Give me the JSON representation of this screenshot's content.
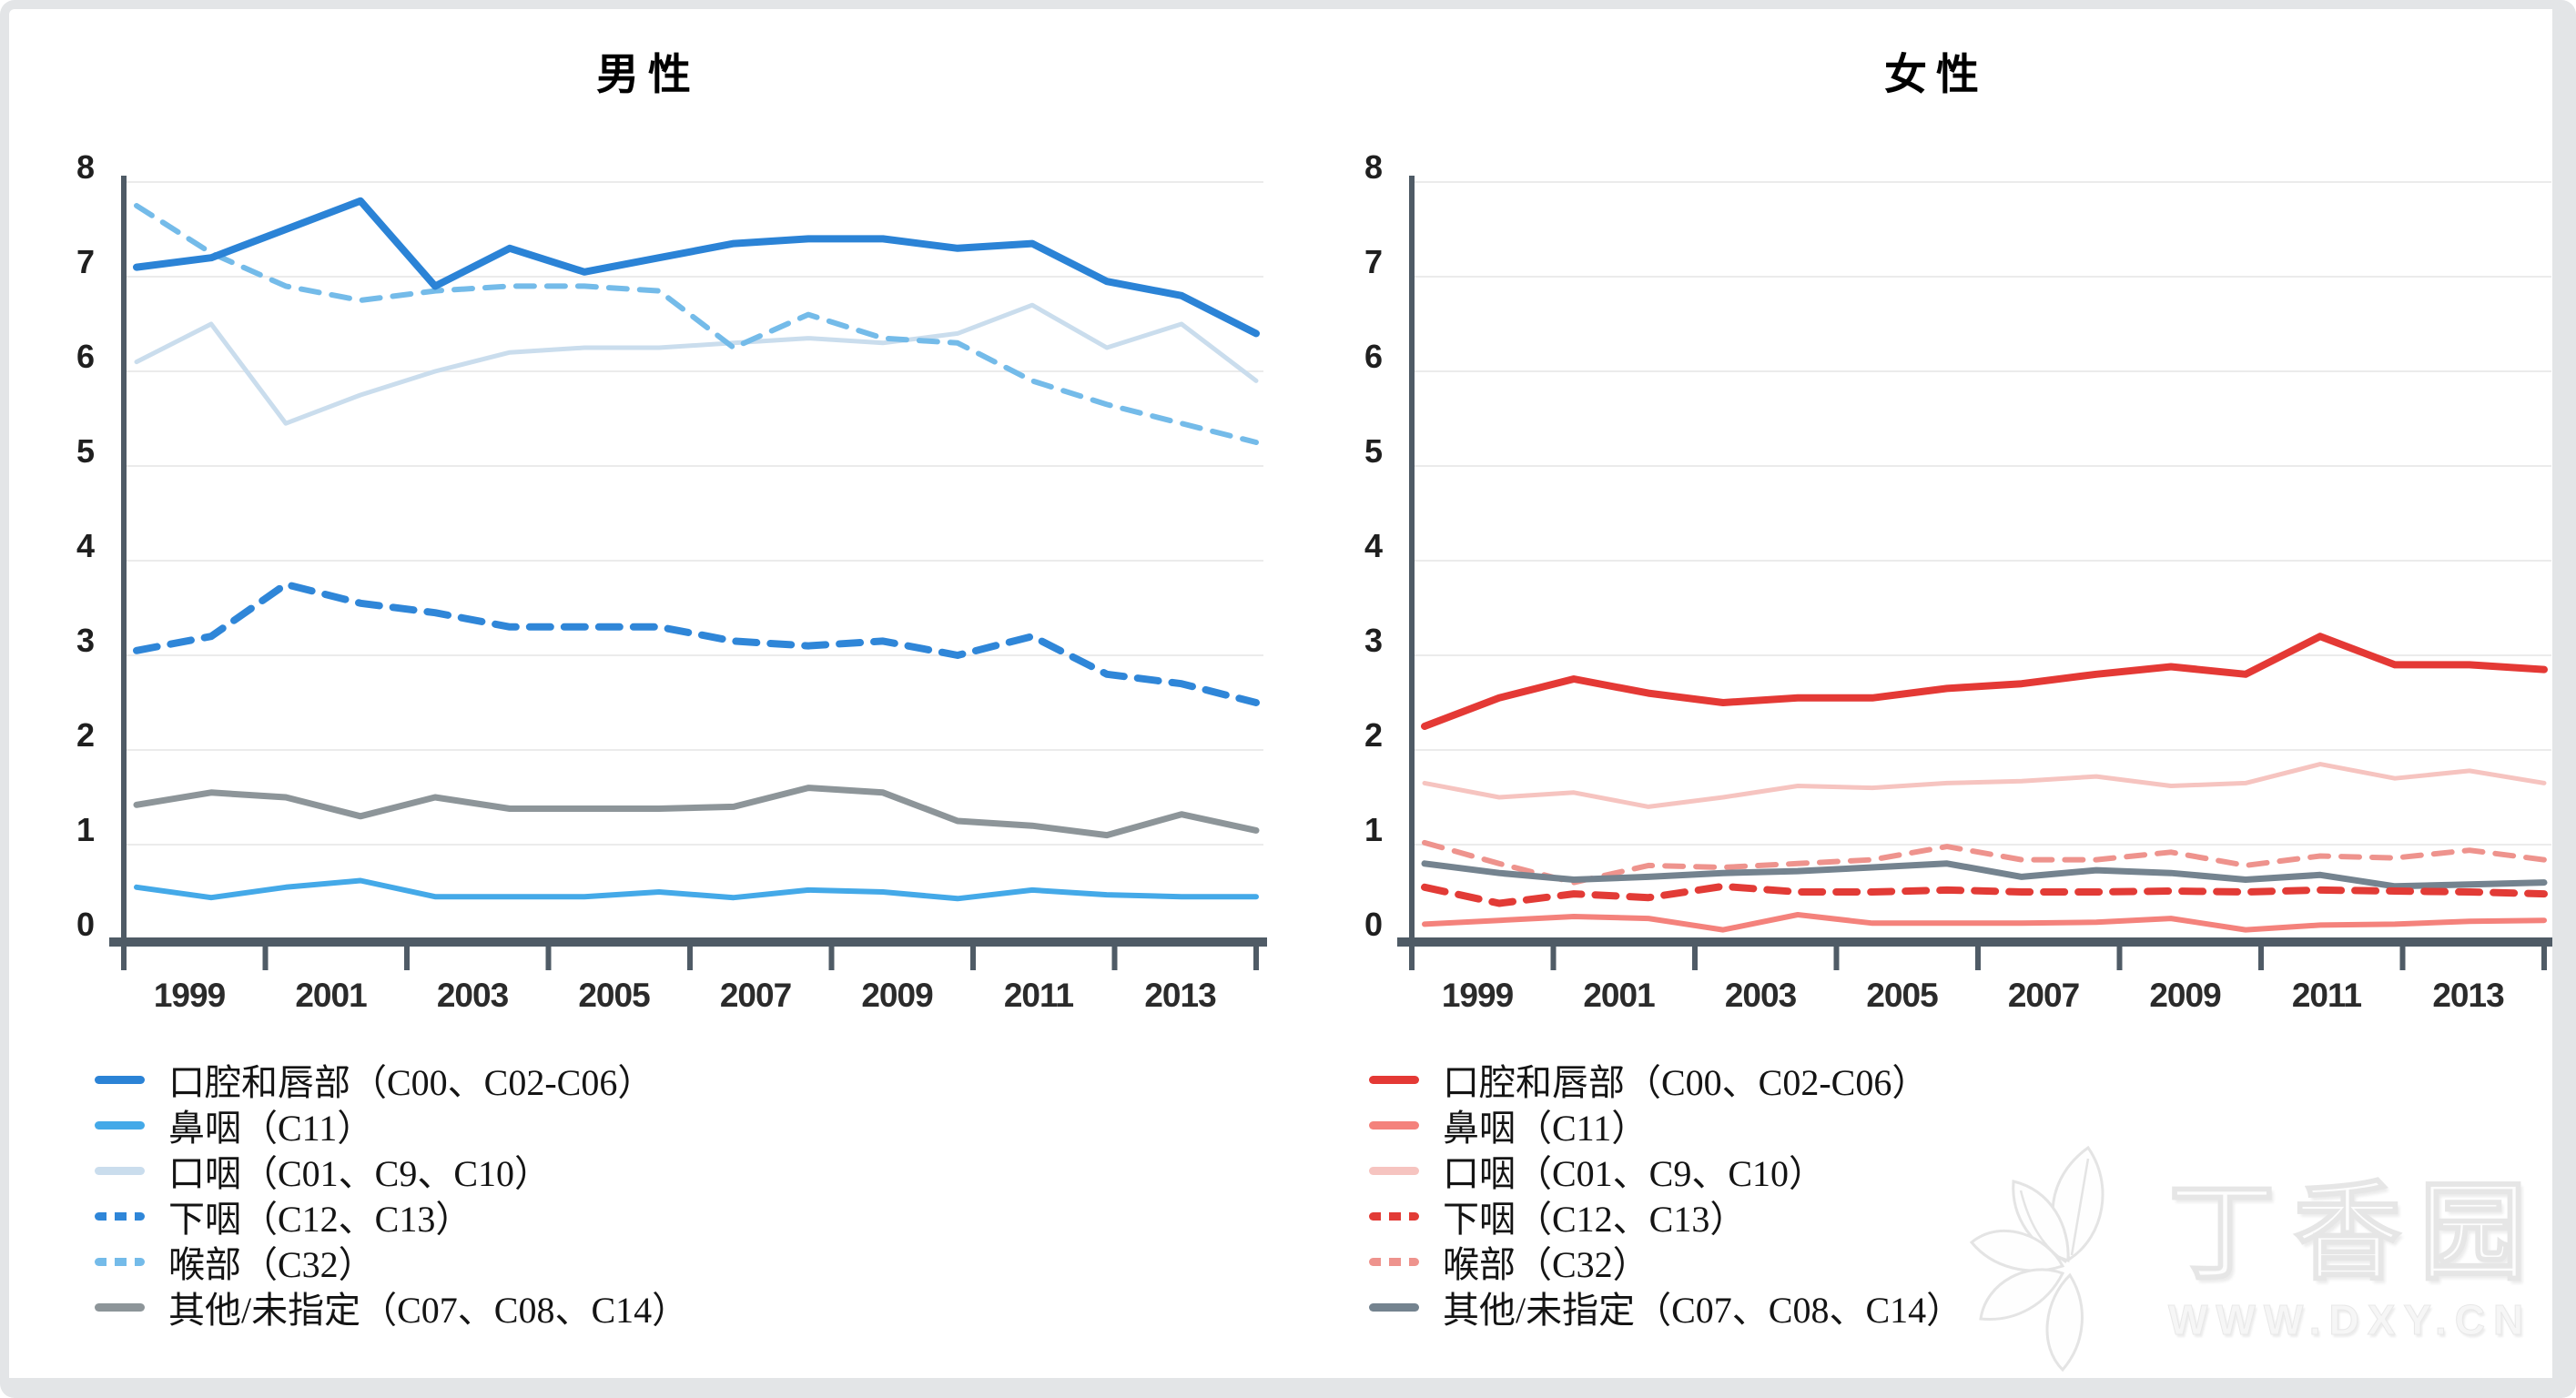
{
  "palette": {
    "axis_color": "#4f5b66",
    "grid_color": "#ebebeb",
    "tick_label_color": "#1f1f1f",
    "year_label_color": "#2b2b2b",
    "title_color": "#000000"
  },
  "watermark": {
    "brand": "丁香园",
    "url": "WWW.DXY.CN",
    "logo": "dxy-leaf-flower-icon"
  },
  "chart_data": [
    {
      "type": "line",
      "title": "男性",
      "x": [
        1999,
        2000,
        2001,
        2002,
        2003,
        2004,
        2005,
        2006,
        2007,
        2008,
        2009,
        2010,
        2011,
        2012,
        2013,
        2014
      ],
      "xticklabels": [
        "1999",
        "2001",
        "2003",
        "2005",
        "2007",
        "2009",
        "2011",
        "2013"
      ],
      "ylim": [
        0,
        8
      ],
      "yticks": [
        0,
        1,
        2,
        3,
        4,
        5,
        6,
        7,
        8
      ],
      "grid": true,
      "legend_position": "bottom-left",
      "series": [
        {
          "name": "口腔和唇部（C00、C02-C06）",
          "color": "#2b83d6",
          "dash": false,
          "width": 8,
          "values": [
            7.1,
            7.2,
            7.5,
            7.8,
            6.9,
            7.3,
            7.05,
            7.2,
            7.35,
            7.4,
            7.4,
            7.3,
            7.35,
            6.95,
            6.8,
            6.4
          ]
        },
        {
          "name": "鼻咽（C11）",
          "color": "#44a9e8",
          "dash": false,
          "width": 6,
          "values": [
            0.55,
            0.44,
            0.55,
            0.62,
            0.45,
            0.45,
            0.45,
            0.5,
            0.44,
            0.52,
            0.5,
            0.43,
            0.52,
            0.47,
            0.45,
            0.45
          ]
        },
        {
          "name": "口咽（C01、C9、C10）",
          "color": "#cadded",
          "dash": false,
          "width": 5,
          "values": [
            6.1,
            6.5,
            5.45,
            5.75,
            6.0,
            6.2,
            6.25,
            6.25,
            6.3,
            6.35,
            6.3,
            6.4,
            6.7,
            6.25,
            6.5,
            5.9
          ]
        },
        {
          "name": "下咽（C12、C13）",
          "color": "#2f86d8",
          "dash": true,
          "width": 8,
          "values": [
            3.05,
            3.2,
            3.75,
            3.55,
            3.45,
            3.3,
            3.3,
            3.3,
            3.15,
            3.1,
            3.15,
            3.0,
            3.2,
            2.8,
            2.7,
            2.5
          ]
        },
        {
          "name": "喉部（C32）",
          "color": "#74bbe9",
          "dash": true,
          "width": 6,
          "values": [
            7.75,
            7.25,
            6.9,
            6.75,
            6.85,
            6.9,
            6.9,
            6.85,
            6.25,
            6.6,
            6.35,
            6.3,
            5.9,
            5.65,
            5.45,
            5.25
          ]
        },
        {
          "name": "其他/未指定（C07、C08、C14）",
          "color": "#8d9599",
          "dash": false,
          "width": 7,
          "values": [
            1.42,
            1.55,
            1.5,
            1.3,
            1.5,
            1.38,
            1.38,
            1.38,
            1.4,
            1.6,
            1.55,
            1.25,
            1.2,
            1.1,
            1.32,
            1.15
          ]
        }
      ]
    },
    {
      "type": "line",
      "title": "女性",
      "x": [
        1999,
        2000,
        2001,
        2002,
        2003,
        2004,
        2005,
        2006,
        2007,
        2008,
        2009,
        2010,
        2011,
        2012,
        2013,
        2014
      ],
      "xticklabels": [
        "1999",
        "2001",
        "2003",
        "2005",
        "2007",
        "2009",
        "2011",
        "2013"
      ],
      "ylim": [
        0,
        8
      ],
      "yticks": [
        0,
        1,
        2,
        3,
        4,
        5,
        6,
        7,
        8
      ],
      "grid": true,
      "legend_position": "bottom-left",
      "series": [
        {
          "name": "口腔和唇部（C00、C02-C06）",
          "color": "#e43935",
          "dash": false,
          "width": 8,
          "values": [
            2.25,
            2.55,
            2.75,
            2.6,
            2.5,
            2.55,
            2.55,
            2.65,
            2.7,
            2.8,
            2.88,
            2.8,
            3.2,
            2.9,
            2.9,
            2.85
          ]
        },
        {
          "name": "鼻咽（C11）",
          "color": "#f4827c",
          "dash": false,
          "width": 6,
          "values": [
            0.16,
            0.2,
            0.24,
            0.22,
            0.1,
            0.26,
            0.17,
            0.17,
            0.17,
            0.18,
            0.22,
            0.1,
            0.15,
            0.16,
            0.19,
            0.2
          ]
        },
        {
          "name": "口咽（C01、C9、C10）",
          "color": "#f6c4c0",
          "dash": false,
          "width": 5,
          "values": [
            1.65,
            1.5,
            1.55,
            1.4,
            1.5,
            1.62,
            1.6,
            1.65,
            1.67,
            1.72,
            1.62,
            1.65,
            1.85,
            1.7,
            1.78,
            1.65
          ]
        },
        {
          "name": "下咽（C12、C13）",
          "color": "#e23b36",
          "dash": true,
          "width": 8,
          "values": [
            0.55,
            0.38,
            0.48,
            0.44,
            0.56,
            0.5,
            0.5,
            0.52,
            0.5,
            0.5,
            0.51,
            0.5,
            0.52,
            0.51,
            0.5,
            0.48
          ]
        },
        {
          "name": "喉部（C32）",
          "color": "#ee938d",
          "dash": true,
          "width": 6,
          "values": [
            1.02,
            0.8,
            0.6,
            0.78,
            0.76,
            0.8,
            0.84,
            0.98,
            0.84,
            0.84,
            0.92,
            0.78,
            0.88,
            0.86,
            0.94,
            0.84
          ]
        },
        {
          "name": "其他/未指定（C07、C08、C14）",
          "color": "#74838f",
          "dash": false,
          "width": 7,
          "values": [
            0.8,
            0.7,
            0.63,
            0.66,
            0.7,
            0.72,
            0.76,
            0.8,
            0.66,
            0.73,
            0.7,
            0.63,
            0.68,
            0.56,
            0.58,
            0.6
          ]
        }
      ]
    }
  ]
}
